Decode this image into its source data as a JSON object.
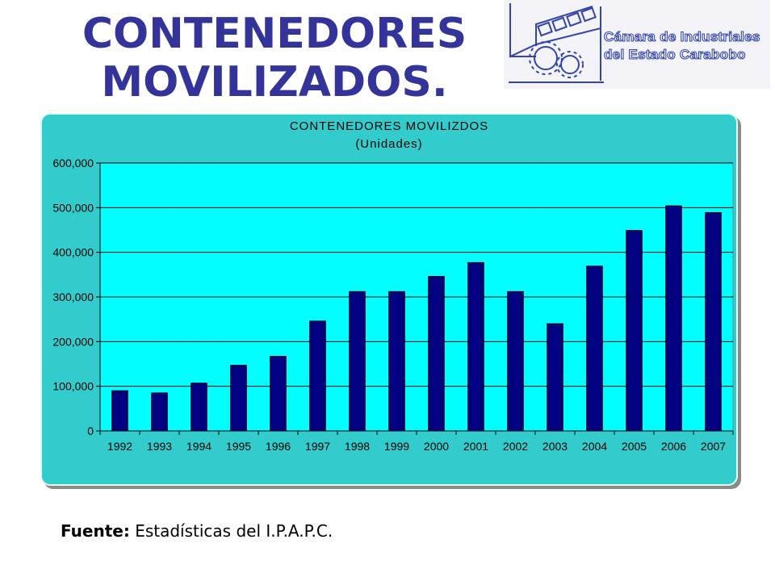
{
  "slide": {
    "title_line1": "CONTENEDORES",
    "title_line2": "MOVILIZADOS.",
    "logo_line1": "Cámara de Industriales",
    "logo_line2": "del Estado Carabobo",
    "footer_label": "Fuente:",
    "footer_text": " Estadísticas del I.P.A.P.C."
  },
  "colors": {
    "title": "#333399",
    "chart_background": "#33cccc",
    "plot_background": "#00ffff",
    "bar": "#000080"
  },
  "chart_data": {
    "type": "bar",
    "title": "CONTENEDORES MOVILIZDOS",
    "subtitle": "(Unidades)",
    "categories": [
      "1992",
      "1993",
      "1994",
      "1995",
      "1996",
      "1997",
      "1998",
      "1999",
      "2000",
      "2001",
      "2002",
      "2003",
      "2004",
      "2005",
      "2006",
      "2007"
    ],
    "values": [
      90000,
      85000,
      107000,
      147000,
      167000,
      246000,
      312000,
      312000,
      346000,
      377000,
      312000,
      240000,
      369000,
      449000,
      504000,
      489000
    ],
    "ylim": [
      0,
      600000
    ],
    "yticks": [
      0,
      100000,
      200000,
      300000,
      400000,
      500000,
      600000
    ],
    "ytick_labels": [
      "0",
      "100,000",
      "200,000",
      "300,000",
      "400,000",
      "500,000",
      "600,000"
    ],
    "xlabel": "",
    "ylabel": "",
    "grid": true,
    "legend": "none"
  }
}
